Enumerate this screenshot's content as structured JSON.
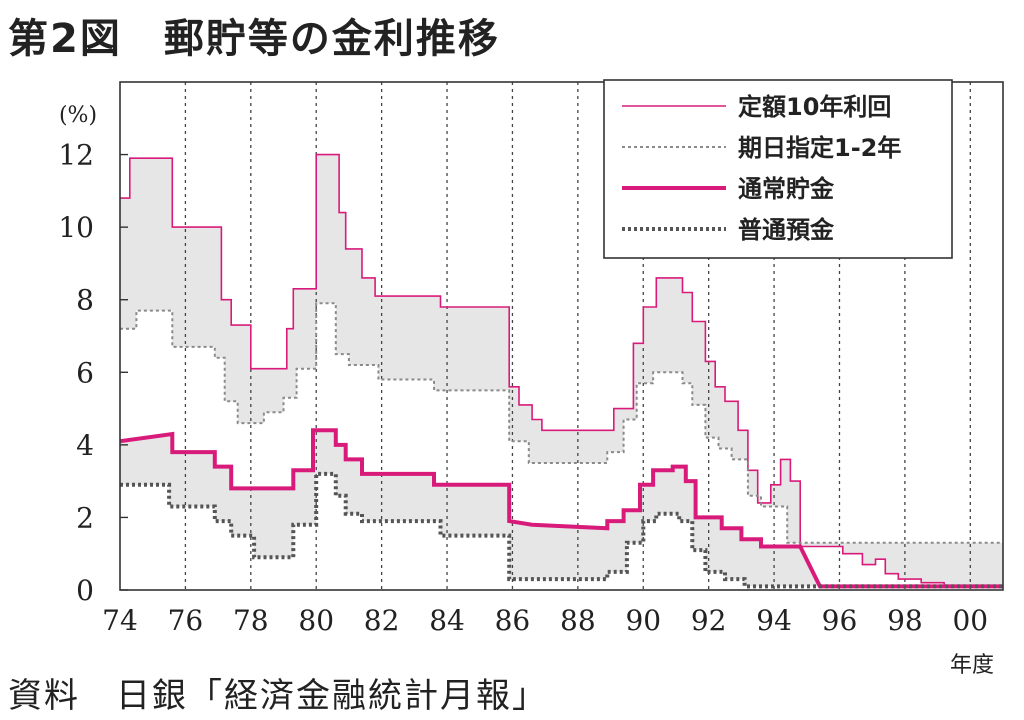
{
  "title": "第2図　郵貯等の金利推移",
  "source": "資料　日銀「経済金融統計月報」",
  "chart_data": {
    "type": "line",
    "ylabel": "(%)",
    "xlabel": "年度",
    "xlim": [
      74,
      101
    ],
    "ylim": [
      0,
      14
    ],
    "grid": "vertical-dotted",
    "legend_position": "top-right",
    "x_ticks": [
      "74",
      "76",
      "78",
      "80",
      "82",
      "84",
      "86",
      "88",
      "90",
      "92",
      "94",
      "96",
      "98",
      "00"
    ],
    "y_ticks": [
      "0",
      "2",
      "4",
      "6",
      "8",
      "10",
      "12"
    ],
    "colors": {
      "pink": "#d81b7a",
      "gray": "#8a8a8a",
      "dark": "#555555",
      "band": "#e6e6e6"
    },
    "series": [
      {
        "name": "定額10年利回",
        "style": "thin-pink",
        "points": [
          [
            74,
            10.8
          ],
          [
            74.3,
            10.8
          ],
          [
            74.3,
            11.9
          ],
          [
            75.6,
            11.9
          ],
          [
            75.6,
            10.0
          ],
          [
            77.1,
            10.0
          ],
          [
            77.1,
            8.0
          ],
          [
            77.4,
            8.0
          ],
          [
            77.4,
            7.3
          ],
          [
            78,
            7.3
          ],
          [
            78,
            6.1
          ],
          [
            79.1,
            6.1
          ],
          [
            79.1,
            7.2
          ],
          [
            79.3,
            7.2
          ],
          [
            79.3,
            8.3
          ],
          [
            80,
            8.3
          ],
          [
            80,
            12.0
          ],
          [
            80.7,
            12.0
          ],
          [
            80.7,
            10.4
          ],
          [
            80.9,
            10.4
          ],
          [
            80.9,
            9.4
          ],
          [
            81.4,
            9.4
          ],
          [
            81.4,
            8.6
          ],
          [
            81.8,
            8.6
          ],
          [
            81.8,
            8.1
          ],
          [
            83.8,
            8.1
          ],
          [
            83.8,
            7.8
          ],
          [
            85.9,
            7.8
          ],
          [
            85.9,
            5.6
          ],
          [
            86.2,
            5.6
          ],
          [
            86.2,
            5.1
          ],
          [
            86.6,
            5.1
          ],
          [
            86.6,
            4.7
          ],
          [
            86.9,
            4.7
          ],
          [
            86.9,
            4.4
          ],
          [
            89.1,
            4.4
          ],
          [
            89.1,
            5.0
          ],
          [
            89.7,
            5.0
          ],
          [
            89.7,
            6.8
          ],
          [
            90,
            6.8
          ],
          [
            90,
            7.8
          ],
          [
            90.4,
            7.8
          ],
          [
            90.4,
            8.6
          ],
          [
            91.2,
            8.6
          ],
          [
            91.2,
            8.2
          ],
          [
            91.5,
            8.2
          ],
          [
            91.5,
            7.4
          ],
          [
            91.9,
            7.4
          ],
          [
            91.9,
            6.3
          ],
          [
            92.2,
            6.3
          ],
          [
            92.2,
            5.6
          ],
          [
            92.5,
            5.6
          ],
          [
            92.5,
            5.2
          ],
          [
            92.9,
            5.2
          ],
          [
            92.9,
            4.4
          ],
          [
            93.2,
            4.4
          ],
          [
            93.2,
            3.3
          ],
          [
            93.5,
            3.3
          ],
          [
            93.5,
            2.4
          ],
          [
            93.9,
            2.4
          ],
          [
            93.9,
            2.9
          ],
          [
            94.2,
            2.9
          ],
          [
            94.2,
            3.6
          ],
          [
            94.5,
            3.6
          ],
          [
            94.5,
            3.0
          ],
          [
            94.8,
            3.0
          ],
          [
            94.8,
            1.2
          ],
          [
            96.1,
            1.2
          ],
          [
            96.1,
            1.0
          ],
          [
            96.7,
            1.0
          ],
          [
            96.7,
            0.7
          ],
          [
            97.1,
            0.7
          ],
          [
            97.1,
            0.85
          ],
          [
            97.4,
            0.85
          ],
          [
            97.4,
            0.45
          ],
          [
            97.8,
            0.45
          ],
          [
            97.8,
            0.3
          ],
          [
            98.5,
            0.3
          ],
          [
            98.5,
            0.2
          ],
          [
            99.2,
            0.2
          ],
          [
            99.2,
            0.1
          ],
          [
            101,
            0.1
          ]
        ]
      },
      {
        "name": "期日指定1-2年",
        "style": "dotted-gray",
        "points": [
          [
            74,
            7.2
          ],
          [
            74.5,
            7.2
          ],
          [
            74.5,
            7.7
          ],
          [
            75.6,
            7.7
          ],
          [
            75.6,
            6.7
          ],
          [
            76.9,
            6.7
          ],
          [
            76.9,
            6.4
          ],
          [
            77.2,
            6.4
          ],
          [
            77.2,
            5.2
          ],
          [
            77.6,
            5.2
          ],
          [
            77.6,
            4.6
          ],
          [
            78.4,
            4.6
          ],
          [
            78.4,
            4.9
          ],
          [
            79,
            4.9
          ],
          [
            79,
            5.3
          ],
          [
            79.4,
            5.3
          ],
          [
            79.4,
            6.1
          ],
          [
            80,
            6.1
          ],
          [
            80,
            7.9
          ],
          [
            80.6,
            7.9
          ],
          [
            80.6,
            6.5
          ],
          [
            81,
            6.5
          ],
          [
            81,
            6.2
          ],
          [
            81.9,
            6.2
          ],
          [
            81.9,
            5.8
          ],
          [
            83.6,
            5.8
          ],
          [
            83.6,
            5.5
          ],
          [
            85.9,
            5.5
          ],
          [
            85.9,
            4.1
          ],
          [
            86.5,
            4.1
          ],
          [
            86.5,
            3.5
          ],
          [
            88.9,
            3.5
          ],
          [
            88.9,
            3.8
          ],
          [
            89.4,
            3.8
          ],
          [
            89.4,
            4.7
          ],
          [
            89.8,
            4.7
          ],
          [
            89.8,
            5.7
          ],
          [
            90.3,
            5.7
          ],
          [
            90.3,
            6.0
          ],
          [
            91.2,
            6.0
          ],
          [
            91.2,
            5.7
          ],
          [
            91.5,
            5.7
          ],
          [
            91.5,
            5.1
          ],
          [
            91.9,
            5.1
          ],
          [
            91.9,
            4.2
          ],
          [
            92.3,
            4.2
          ],
          [
            92.3,
            3.9
          ],
          [
            92.7,
            3.9
          ],
          [
            92.7,
            3.6
          ],
          [
            93.2,
            3.6
          ],
          [
            93.2,
            2.6
          ],
          [
            93.6,
            2.6
          ],
          [
            93.6,
            2.3
          ],
          [
            94.4,
            2.3
          ],
          [
            94.4,
            1.3
          ],
          [
            101,
            1.3
          ]
        ]
      },
      {
        "name": "通常貯金",
        "style": "thick-pink",
        "points": [
          [
            74,
            4.1
          ],
          [
            75.6,
            4.3
          ],
          [
            75.6,
            3.8
          ],
          [
            76.9,
            3.8
          ],
          [
            76.9,
            3.4
          ],
          [
            77.4,
            3.4
          ],
          [
            77.4,
            2.8
          ],
          [
            79.3,
            2.8
          ],
          [
            79.3,
            3.3
          ],
          [
            79.9,
            3.3
          ],
          [
            79.9,
            4.4
          ],
          [
            80.6,
            4.4
          ],
          [
            80.6,
            4.0
          ],
          [
            80.9,
            4.0
          ],
          [
            80.9,
            3.6
          ],
          [
            81.4,
            3.6
          ],
          [
            81.4,
            3.2
          ],
          [
            83.6,
            3.2
          ],
          [
            83.6,
            2.9
          ],
          [
            85.9,
            2.9
          ],
          [
            85.9,
            1.9
          ],
          [
            86.6,
            1.8
          ],
          [
            88.9,
            1.7
          ],
          [
            88.9,
            1.9
          ],
          [
            89.4,
            1.9
          ],
          [
            89.4,
            2.2
          ],
          [
            89.9,
            2.2
          ],
          [
            89.9,
            2.9
          ],
          [
            90.3,
            2.9
          ],
          [
            90.3,
            3.3
          ],
          [
            90.9,
            3.3
          ],
          [
            90.9,
            3.4
          ],
          [
            91.3,
            3.4
          ],
          [
            91.3,
            3.0
          ],
          [
            91.6,
            3.0
          ],
          [
            91.6,
            2.0
          ],
          [
            92.4,
            2.0
          ],
          [
            92.4,
            1.7
          ],
          [
            93.0,
            1.7
          ],
          [
            93.0,
            1.4
          ],
          [
            93.6,
            1.4
          ],
          [
            93.6,
            1.2
          ],
          [
            94.8,
            1.2
          ],
          [
            95.4,
            0.1
          ],
          [
            101,
            0.1
          ]
        ]
      },
      {
        "name": "普通預金",
        "style": "dotted-dark",
        "points": [
          [
            74,
            2.9
          ],
          [
            75.5,
            2.9
          ],
          [
            75.5,
            2.3
          ],
          [
            76.9,
            2.3
          ],
          [
            76.9,
            1.9
          ],
          [
            77.4,
            1.9
          ],
          [
            77.4,
            1.5
          ],
          [
            78.1,
            1.5
          ],
          [
            78.1,
            0.9
          ],
          [
            79.3,
            0.9
          ],
          [
            79.3,
            1.8
          ],
          [
            80,
            1.8
          ],
          [
            80,
            3.2
          ],
          [
            80.6,
            3.2
          ],
          [
            80.6,
            2.6
          ],
          [
            80.9,
            2.6
          ],
          [
            80.9,
            2.1
          ],
          [
            81.4,
            2.1
          ],
          [
            81.4,
            1.9
          ],
          [
            83.8,
            1.9
          ],
          [
            83.8,
            1.5
          ],
          [
            85.9,
            1.5
          ],
          [
            85.9,
            0.3
          ],
          [
            88.9,
            0.3
          ],
          [
            88.9,
            0.5
          ],
          [
            89.5,
            0.5
          ],
          [
            89.5,
            1.3
          ],
          [
            90,
            1.3
          ],
          [
            90,
            1.9
          ],
          [
            90.4,
            1.9
          ],
          [
            90.4,
            2.1
          ],
          [
            91.1,
            2.1
          ],
          [
            91.1,
            1.9
          ],
          [
            91.5,
            1.9
          ],
          [
            91.5,
            1.1
          ],
          [
            91.9,
            1.1
          ],
          [
            91.9,
            0.5
          ],
          [
            92.5,
            0.5
          ],
          [
            92.5,
            0.3
          ],
          [
            93.1,
            0.3
          ],
          [
            93.1,
            0.1
          ],
          [
            101,
            0.1
          ]
        ]
      }
    ]
  }
}
